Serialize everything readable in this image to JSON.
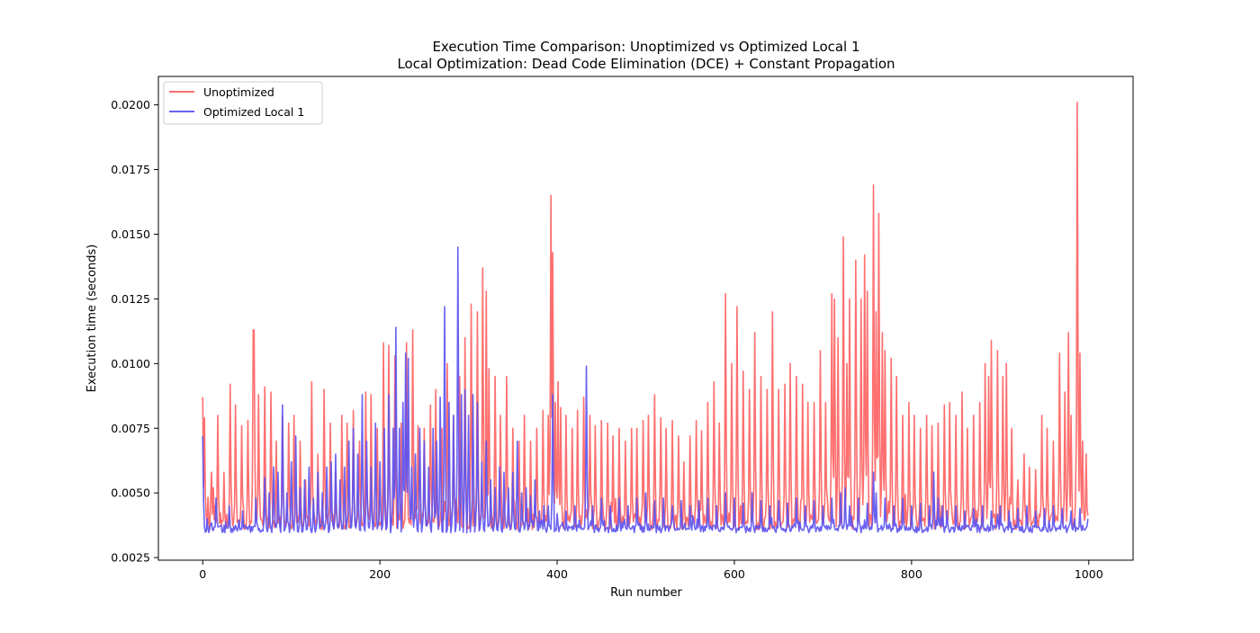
{
  "chart_data": {
    "type": "line",
    "title": "Execution Time Comparison: Unoptimized vs Optimized Local 1",
    "subtitle": "Local Optimization: Dead Code Elimination (DCE) + Constant Propagation",
    "xlabel": "Run number",
    "ylabel": "Execution time (seconds)",
    "xlim": [
      -50,
      1050
    ],
    "ylim": [
      0.0024,
      0.0211
    ],
    "xticks": [
      0,
      200,
      400,
      600,
      800,
      1000
    ],
    "xtick_labels": [
      "0",
      "200",
      "400",
      "600",
      "800",
      "1000"
    ],
    "yticks": [
      0.0025,
      0.005,
      0.0075,
      0.01,
      0.0125,
      0.015,
      0.0175,
      0.02
    ],
    "ytick_labels": [
      "0.0025",
      "0.0050",
      "0.0075",
      "0.0100",
      "0.0125",
      "0.0150",
      "0.0175",
      "0.0200"
    ],
    "grid": false,
    "legend_position": "top-left",
    "n_runs": 1000,
    "series": [
      {
        "name": "Unoptimized",
        "color": "#ff5f5f",
        "baseline": 0.004,
        "noise": 0.0006,
        "floor": 0.0033,
        "peaks": [
          [
            0,
            0.0087
          ],
          [
            2,
            0.0079
          ],
          [
            10,
            0.0058
          ],
          [
            12,
            0.0052
          ],
          [
            17,
            0.008
          ],
          [
            24,
            0.0058
          ],
          [
            31,
            0.0092
          ],
          [
            37,
            0.0084
          ],
          [
            44,
            0.0076
          ],
          [
            51,
            0.0078
          ],
          [
            57,
            0.0113
          ],
          [
            58,
            0.0113
          ],
          [
            63,
            0.0088
          ],
          [
            70,
            0.0091
          ],
          [
            77,
            0.0089
          ],
          [
            83,
            0.007
          ],
          [
            90,
            0.008
          ],
          [
            97,
            0.0077
          ],
          [
            103,
            0.008
          ],
          [
            110,
            0.007
          ],
          [
            116,
            0.0055
          ],
          [
            123,
            0.0093
          ],
          [
            130,
            0.0065
          ],
          [
            137,
            0.009
          ],
          [
            144,
            0.0077
          ],
          [
            150,
            0.0058
          ],
          [
            157,
            0.008
          ],
          [
            163,
            0.0077
          ],
          [
            170,
            0.0082
          ],
          [
            177,
            0.007
          ],
          [
            184,
            0.0089
          ],
          [
            190,
            0.0088
          ],
          [
            197,
            0.0075
          ],
          [
            204,
            0.0108
          ],
          [
            210,
            0.0107
          ],
          [
            217,
            0.0103
          ],
          [
            224,
            0.0077
          ],
          [
            230,
            0.0108
          ],
          [
            237,
            0.0113
          ],
          [
            243,
            0.0076
          ],
          [
            250,
            0.0075
          ],
          [
            257,
            0.0084
          ],
          [
            263,
            0.009
          ],
          [
            270,
            0.0075
          ],
          [
            276,
            0.01
          ],
          [
            283,
            0.008
          ],
          [
            290,
            0.0095
          ],
          [
            296,
            0.011
          ],
          [
            303,
            0.0123
          ],
          [
            310,
            0.012
          ],
          [
            316,
            0.0137
          ],
          [
            320,
            0.0128
          ],
          [
            323,
            0.0098
          ],
          [
            330,
            0.0095
          ],
          [
            336,
            0.008
          ],
          [
            343,
            0.0095
          ],
          [
            350,
            0.0075
          ],
          [
            357,
            0.007
          ],
          [
            363,
            0.008
          ],
          [
            370,
            0.007
          ],
          [
            377,
            0.0075
          ],
          [
            384,
            0.0082
          ],
          [
            390,
            0.008
          ],
          [
            393,
            0.0165
          ],
          [
            395,
            0.0143
          ],
          [
            398,
            0.0085
          ],
          [
            401,
            0.0093
          ],
          [
            404,
            0.0083
          ],
          [
            410,
            0.008
          ],
          [
            417,
            0.0075
          ],
          [
            423,
            0.0082
          ],
          [
            430,
            0.0087
          ],
          [
            437,
            0.008
          ],
          [
            443,
            0.0076
          ],
          [
            450,
            0.0078
          ],
          [
            457,
            0.0077
          ],
          [
            463,
            0.0072
          ],
          [
            470,
            0.0075
          ],
          [
            477,
            0.007
          ],
          [
            484,
            0.0075
          ],
          [
            490,
            0.0075
          ],
          [
            497,
            0.0078
          ],
          [
            503,
            0.008
          ],
          [
            510,
            0.0088
          ],
          [
            517,
            0.0079
          ],
          [
            523,
            0.0075
          ],
          [
            530,
            0.0078
          ],
          [
            537,
            0.0072
          ],
          [
            543,
            0.0062
          ],
          [
            550,
            0.0072
          ],
          [
            557,
            0.0078
          ],
          [
            563,
            0.0074
          ],
          [
            570,
            0.0085
          ],
          [
            577,
            0.0093
          ],
          [
            583,
            0.0077
          ],
          [
            590,
            0.0127
          ],
          [
            597,
            0.01
          ],
          [
            603,
            0.0122
          ],
          [
            610,
            0.0097
          ],
          [
            617,
            0.009
          ],
          [
            623,
            0.0112
          ],
          [
            630,
            0.0095
          ],
          [
            637,
            0.009
          ],
          [
            643,
            0.012
          ],
          [
            650,
            0.009
          ],
          [
            657,
            0.0092
          ],
          [
            663,
            0.01
          ],
          [
            670,
            0.0095
          ],
          [
            677,
            0.0092
          ],
          [
            683,
            0.0085
          ],
          [
            690,
            0.0085
          ],
          [
            697,
            0.0105
          ],
          [
            703,
            0.0085
          ],
          [
            710,
            0.0127
          ],
          [
            713,
            0.0125
          ],
          [
            717,
            0.011
          ],
          [
            723,
            0.0149
          ],
          [
            727,
            0.01
          ],
          [
            730,
            0.0125
          ],
          [
            737,
            0.014
          ],
          [
            743,
            0.0125
          ],
          [
            747,
            0.0142
          ],
          [
            750,
            0.0128
          ],
          [
            757,
            0.0169
          ],
          [
            760,
            0.012
          ],
          [
            763,
            0.0158
          ],
          [
            767,
            0.0112
          ],
          [
            770,
            0.0105
          ],
          [
            777,
            0.0102
          ],
          [
            783,
            0.0095
          ],
          [
            790,
            0.008
          ],
          [
            797,
            0.0085
          ],
          [
            803,
            0.008
          ],
          [
            810,
            0.0075
          ],
          [
            817,
            0.008
          ],
          [
            823,
            0.0076
          ],
          [
            830,
            0.0077
          ],
          [
            837,
            0.0084
          ],
          [
            843,
            0.0085
          ],
          [
            850,
            0.008
          ],
          [
            857,
            0.0089
          ],
          [
            863,
            0.0075
          ],
          [
            870,
            0.008
          ],
          [
            877,
            0.0085
          ],
          [
            883,
            0.01
          ],
          [
            887,
            0.0095
          ],
          [
            890,
            0.0109
          ],
          [
            897,
            0.0105
          ],
          [
            903,
            0.0095
          ],
          [
            907,
            0.01
          ],
          [
            913,
            0.0075
          ],
          [
            920,
            0.0055
          ],
          [
            927,
            0.0065
          ],
          [
            933,
            0.006
          ],
          [
            940,
            0.0059
          ],
          [
            947,
            0.008
          ],
          [
            953,
            0.0075
          ],
          [
            960,
            0.007
          ],
          [
            967,
            0.0104
          ],
          [
            973,
            0.0089
          ],
          [
            977,
            0.0112
          ],
          [
            980,
            0.008
          ],
          [
            987,
            0.0201
          ],
          [
            990,
            0.0104
          ],
          [
            993,
            0.007
          ],
          [
            997,
            0.0065
          ]
        ]
      },
      {
        "name": "Optimized Local 1",
        "color": "#5a50f0",
        "baseline": 0.0037,
        "noise": 0.0003,
        "floor": 0.0033,
        "peaks": [
          [
            0,
            0.0072
          ],
          [
            5,
            0.004
          ],
          [
            15,
            0.0048
          ],
          [
            30,
            0.0045
          ],
          [
            45,
            0.0043
          ],
          [
            60,
            0.0048
          ],
          [
            70,
            0.0056
          ],
          [
            75,
            0.005
          ],
          [
            80,
            0.006
          ],
          [
            85,
            0.0058
          ],
          [
            90,
            0.0084
          ],
          [
            95,
            0.005
          ],
          [
            100,
            0.0062
          ],
          [
            105,
            0.0072
          ],
          [
            110,
            0.0052
          ],
          [
            115,
            0.0055
          ],
          [
            120,
            0.006
          ],
          [
            125,
            0.0048
          ],
          [
            130,
            0.0058
          ],
          [
            135,
            0.005
          ],
          [
            140,
            0.006
          ],
          [
            145,
            0.0062
          ],
          [
            150,
            0.0065
          ],
          [
            155,
            0.0055
          ],
          [
            160,
            0.006
          ],
          [
            165,
            0.007
          ],
          [
            170,
            0.0075
          ],
          [
            175,
            0.0065
          ],
          [
            180,
            0.0088
          ],
          [
            185,
            0.007
          ],
          [
            190,
            0.006
          ],
          [
            195,
            0.0077
          ],
          [
            200,
            0.0062
          ],
          [
            205,
            0.0075
          ],
          [
            210,
            0.0088
          ],
          [
            215,
            0.0075
          ],
          [
            218,
            0.0114
          ],
          [
            222,
            0.0075
          ],
          [
            226,
            0.0085
          ],
          [
            229,
            0.0104
          ],
          [
            232,
            0.0102
          ],
          [
            236,
            0.006
          ],
          [
            240,
            0.0065
          ],
          [
            245,
            0.0075
          ],
          [
            250,
            0.007
          ],
          [
            255,
            0.006
          ],
          [
            260,
            0.0075
          ],
          [
            264,
            0.007
          ],
          [
            268,
            0.0087
          ],
          [
            273,
            0.0122
          ],
          [
            278,
            0.0085
          ],
          [
            283,
            0.008
          ],
          [
            288,
            0.0145
          ],
          [
            292,
            0.0088
          ],
          [
            296,
            0.009
          ],
          [
            300,
            0.008
          ],
          [
            305,
            0.0088
          ],
          [
            310,
            0.0085
          ],
          [
            315,
            0.0062
          ],
          [
            320,
            0.007
          ],
          [
            325,
            0.0055
          ],
          [
            330,
            0.0052
          ],
          [
            335,
            0.006
          ],
          [
            340,
            0.0058
          ],
          [
            345,
            0.0052
          ],
          [
            350,
            0.0058
          ],
          [
            355,
            0.007
          ],
          [
            360,
            0.005
          ],
          [
            365,
            0.0052
          ],
          [
            370,
            0.0049
          ],
          [
            375,
            0.0055
          ],
          [
            380,
            0.0043
          ],
          [
            385,
            0.0045
          ],
          [
            390,
            0.0045
          ],
          [
            395,
            0.0088
          ],
          [
            400,
            0.0042
          ],
          [
            410,
            0.0043
          ],
          [
            420,
            0.0045
          ],
          [
            433,
            0.0099
          ],
          [
            440,
            0.0045
          ],
          [
            450,
            0.0048
          ],
          [
            460,
            0.0045
          ],
          [
            470,
            0.0048
          ],
          [
            480,
            0.0045
          ],
          [
            490,
            0.0048
          ],
          [
            500,
            0.005
          ],
          [
            510,
            0.0047
          ],
          [
            520,
            0.0048
          ],
          [
            530,
            0.0045
          ],
          [
            540,
            0.0047
          ],
          [
            550,
            0.0045
          ],
          [
            560,
            0.0047
          ],
          [
            570,
            0.0048
          ],
          [
            580,
            0.0045
          ],
          [
            590,
            0.005
          ],
          [
            600,
            0.0048
          ],
          [
            610,
            0.0046
          ],
          [
            620,
            0.005
          ],
          [
            630,
            0.0047
          ],
          [
            640,
            0.0045
          ],
          [
            650,
            0.0047
          ],
          [
            660,
            0.0046
          ],
          [
            670,
            0.0048
          ],
          [
            680,
            0.0045
          ],
          [
            690,
            0.0047
          ],
          [
            700,
            0.0045
          ],
          [
            710,
            0.0048
          ],
          [
            720,
            0.005
          ],
          [
            725,
            0.0052
          ],
          [
            730,
            0.0045
          ],
          [
            740,
            0.0048
          ],
          [
            750,
            0.0046
          ],
          [
            757,
            0.0058
          ],
          [
            760,
            0.005
          ],
          [
            770,
            0.0048
          ],
          [
            780,
            0.0045
          ],
          [
            790,
            0.0048
          ],
          [
            800,
            0.0045
          ],
          [
            810,
            0.0046
          ],
          [
            820,
            0.0045
          ],
          [
            825,
            0.0058
          ],
          [
            830,
            0.0048
          ],
          [
            835,
            0.0045
          ],
          [
            840,
            0.0043
          ],
          [
            850,
            0.0045
          ],
          [
            860,
            0.0043
          ],
          [
            870,
            0.0044
          ],
          [
            880,
            0.0045
          ],
          [
            890,
            0.0043
          ],
          [
            900,
            0.0045
          ],
          [
            910,
            0.0043
          ],
          [
            920,
            0.0044
          ],
          [
            930,
            0.0045
          ],
          [
            940,
            0.0043
          ],
          [
            950,
            0.0044
          ],
          [
            960,
            0.0045
          ],
          [
            970,
            0.0044
          ],
          [
            980,
            0.0043
          ],
          [
            990,
            0.0044
          ],
          [
            1000,
            0.004
          ]
        ]
      }
    ]
  }
}
